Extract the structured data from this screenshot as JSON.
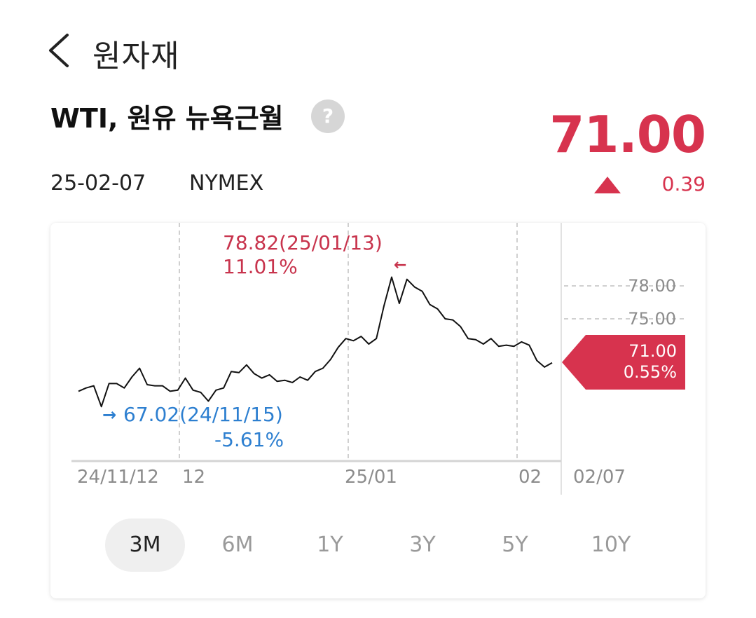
{
  "header": {
    "title": "원자재",
    "back_icon": "chevron-left-icon"
  },
  "instrument": {
    "name": "WTI, 원유 뉴욕근월",
    "help_icon": "question-mark-icon",
    "help_glyph": "?",
    "price": "71.00",
    "date": "25-02-07",
    "exchange": "NYMEX",
    "change_icon": "triangle-up-icon",
    "change": "0.39",
    "color_up": "#d7334e"
  },
  "chart_data": {
    "type": "line",
    "high": {
      "label": "78.82(25/01/13)",
      "pct": "11.01%",
      "color": "#c8344d"
    },
    "low": {
      "label": "67.02(24/11/15)",
      "pct": "-5.61%",
      "color": "#2d7fd0"
    },
    "current": {
      "value": "71.00",
      "pct": "0.55%"
    },
    "y_ticks": [
      "78.00",
      "75.00"
    ],
    "x_ticks": [
      "24/11/12",
      "12",
      "25/01",
      "02",
      "02/07"
    ],
    "ylim": [
      65,
      80
    ],
    "series": [
      {
        "values": [
          68.4,
          68.7,
          68.9,
          67.0,
          69.1,
          69.1,
          68.7,
          69.7,
          70.5,
          69.0,
          68.9,
          68.9,
          68.4,
          68.5,
          69.6,
          68.5,
          68.3,
          67.5,
          68.5,
          68.7,
          70.2,
          70.1,
          70.8,
          70.0,
          69.6,
          69.9,
          69.3,
          69.4,
          69.2,
          69.7,
          69.4,
          70.2,
          70.5,
          71.3,
          72.4,
          73.2,
          73.0,
          73.4,
          72.7,
          73.2,
          76.2,
          78.8,
          76.4,
          78.6,
          77.9,
          77.5,
          76.3,
          75.9,
          75.0,
          74.9,
          74.3,
          73.2,
          73.1,
          72.7,
          73.2,
          72.5,
          72.6,
          72.5,
          72.9,
          72.6,
          71.2,
          70.6,
          71.0
        ]
      }
    ]
  },
  "periods": [
    {
      "label": "3M",
      "active": true
    },
    {
      "label": "6M",
      "active": false
    },
    {
      "label": "1Y",
      "active": false
    },
    {
      "label": "3Y",
      "active": false
    },
    {
      "label": "5Y",
      "active": false
    },
    {
      "label": "10Y",
      "active": false
    }
  ]
}
